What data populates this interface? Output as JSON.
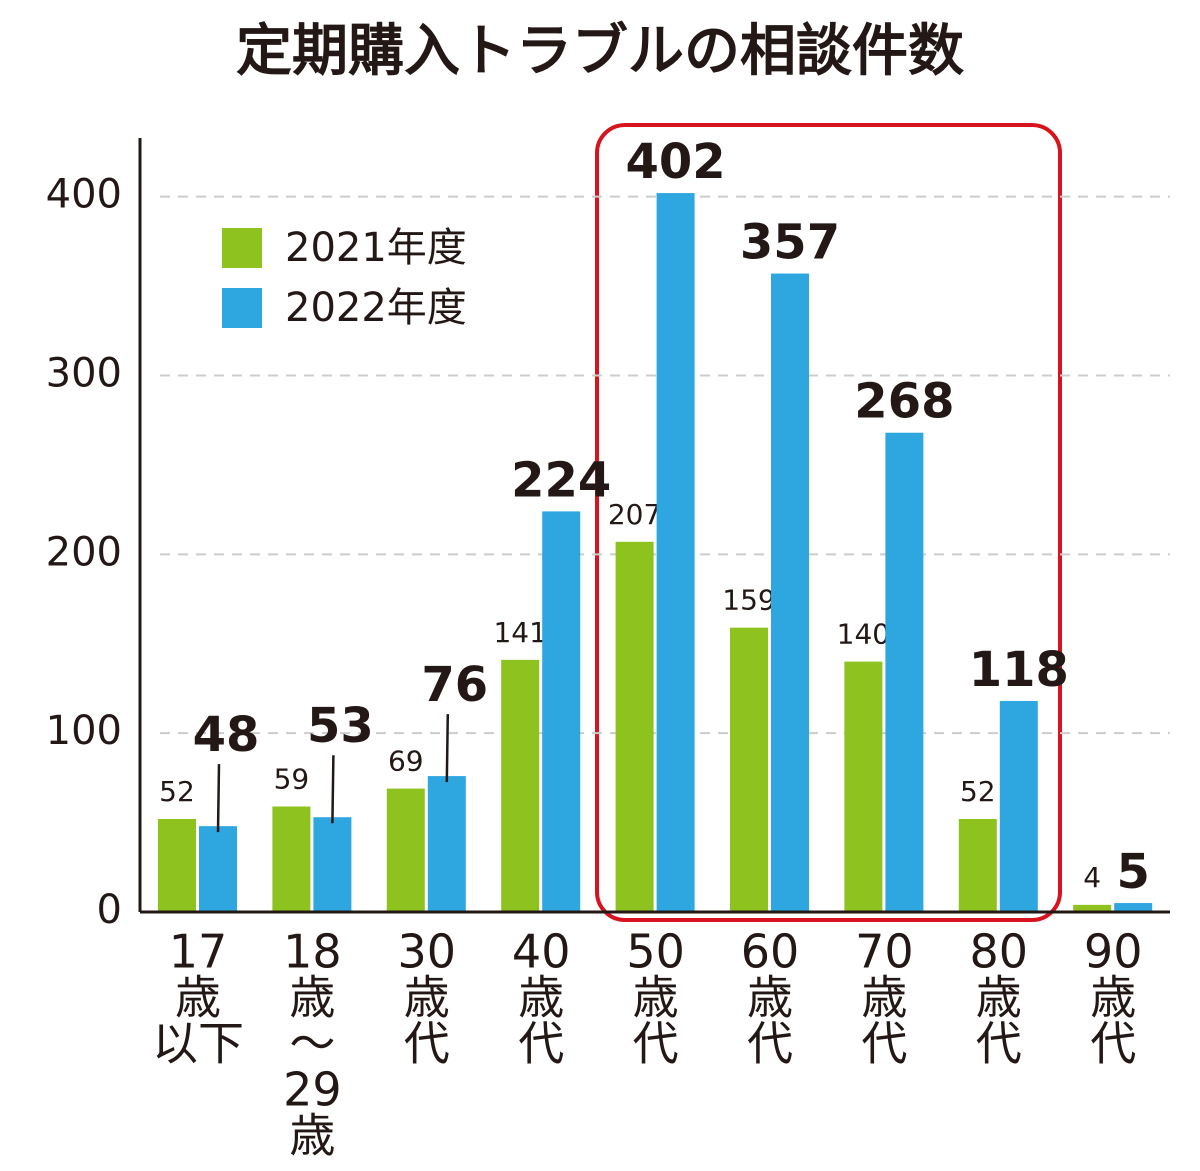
{
  "chart_data": {
    "type": "bar",
    "title": "定期購入トラブルの相談件数",
    "categories": [
      [
        "17",
        "歳",
        "以下"
      ],
      [
        "18",
        "歳",
        "～",
        "29",
        "歳"
      ],
      [
        "30",
        "歳",
        "代"
      ],
      [
        "40",
        "歳",
        "代"
      ],
      [
        "50",
        "歳",
        "代"
      ],
      [
        "60",
        "歳",
        "代"
      ],
      [
        "70",
        "歳",
        "代"
      ],
      [
        "80",
        "歳",
        "代"
      ],
      [
        "90",
        "歳",
        "代"
      ]
    ],
    "series": [
      {
        "name": "2021年度",
        "color": "#8dc21f",
        "values": [
          52,
          59,
          69,
          141,
          207,
          159,
          140,
          52,
          4
        ]
      },
      {
        "name": "2022年度",
        "color": "#2ea7e0",
        "values": [
          48,
          53,
          76,
          224,
          402,
          357,
          268,
          118,
          5
        ]
      }
    ],
    "ylim": [
      0,
      430
    ],
    "yticks": [
      0,
      100,
      200,
      300,
      400
    ],
    "grid": true
  }
}
